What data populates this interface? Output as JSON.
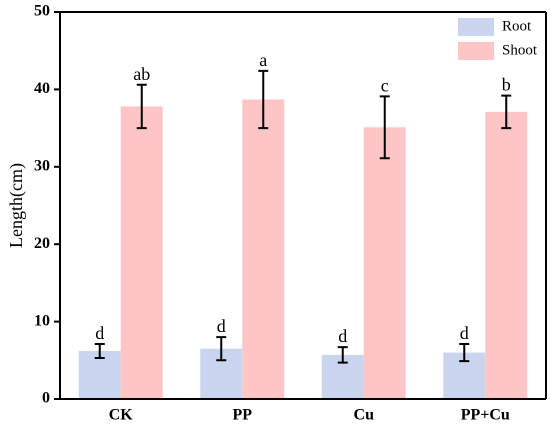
{
  "chart_data": {
    "type": "bar",
    "ylabel": "Length(cm)",
    "xlabel": "",
    "ylim": [
      0,
      50
    ],
    "yticks": [
      0,
      10,
      20,
      30,
      40,
      50
    ],
    "categories": [
      "CK",
      "PP",
      "Cu",
      "PP+Cu"
    ],
    "series": [
      {
        "name": "Root",
        "color": "#c9d5ef",
        "values": [
          6.2,
          6.5,
          5.7,
          6.0
        ],
        "errors": [
          0.9,
          1.5,
          1.0,
          1.1
        ],
        "labels": [
          "d",
          "d",
          "d",
          "d"
        ]
      },
      {
        "name": "Shoot",
        "color": "#fdc5c5",
        "values": [
          37.8,
          38.7,
          35.1,
          37.1
        ],
        "errors": [
          2.8,
          3.7,
          4.0,
          2.1
        ],
        "labels": [
          "ab",
          "a",
          "c",
          "b"
        ]
      }
    ],
    "legend_position": "top-right",
    "grid": false
  }
}
